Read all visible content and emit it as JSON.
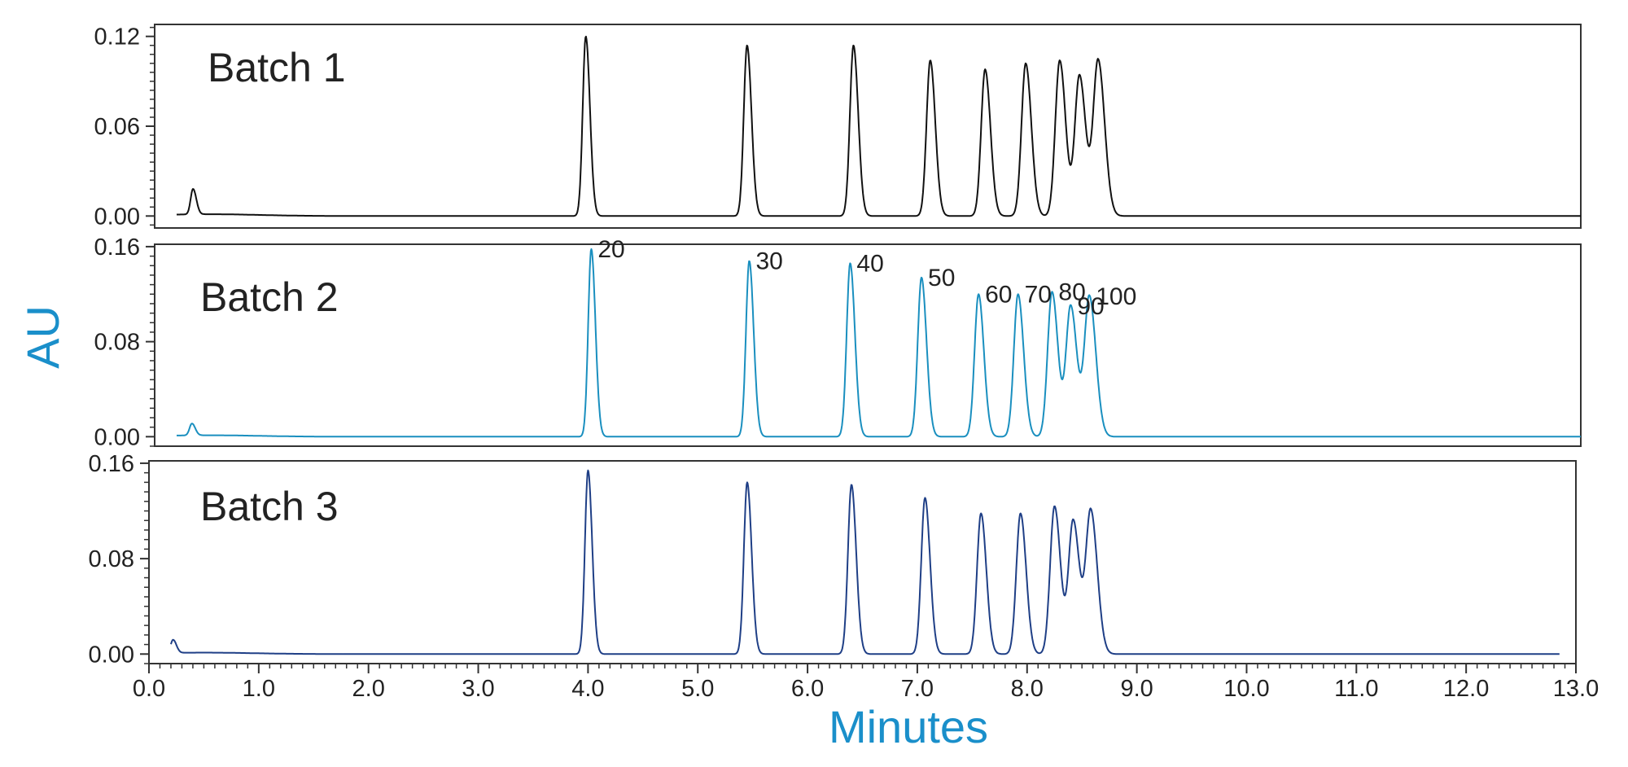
{
  "colors": {
    "batch1": "#111111",
    "batch2": "#1a8fbf",
    "batch3": "#1f3f86",
    "axis_title": "#1a8fca",
    "frame": "#333333"
  },
  "chart_data": {
    "type": "line",
    "title": "",
    "xlabel": "Minutes",
    "ylabel": "AU",
    "xlim": [
      0.0,
      13.0
    ],
    "x_ticks": [
      "0.0",
      "1.0",
      "2.0",
      "3.0",
      "4.0",
      "5.0",
      "6.0",
      "7.0",
      "8.0",
      "9.0",
      "10.0",
      "11.0",
      "12.0",
      "13.0"
    ],
    "grid": false,
    "panels": [
      {
        "name": "Batch 1",
        "ylim": [
          -0.008,
          0.128
        ],
        "y_ticks": [
          "0.00",
          "0.06",
          "0.12"
        ],
        "run_end": 13.0,
        "peaks": [
          {
            "x": 0.35,
            "y": 0.017
          },
          {
            "x": 3.93,
            "y": 0.12
          },
          {
            "x": 5.4,
            "y": 0.114
          },
          {
            "x": 6.37,
            "y": 0.114
          },
          {
            "x": 7.07,
            "y": 0.104
          },
          {
            "x": 7.57,
            "y": 0.098
          },
          {
            "x": 7.94,
            "y": 0.102
          },
          {
            "x": 8.25,
            "y": 0.104
          },
          {
            "x": 8.43,
            "y": 0.094
          },
          {
            "x": 8.6,
            "y": 0.104
          }
        ]
      },
      {
        "name": "Batch 2",
        "ylim": [
          -0.008,
          0.162
        ],
        "y_ticks": [
          "0.00",
          "0.08",
          "0.16"
        ],
        "run_end": 13.0,
        "peaks": [
          {
            "x": 0.34,
            "y": 0.01,
            "label": ""
          },
          {
            "x": 3.98,
            "y": 0.158,
            "label": "20"
          },
          {
            "x": 5.42,
            "y": 0.148,
            "label": "30"
          },
          {
            "x": 6.34,
            "y": 0.146,
            "label": "40"
          },
          {
            "x": 6.99,
            "y": 0.134,
            "label": "50"
          },
          {
            "x": 7.51,
            "y": 0.12,
            "label": "60"
          },
          {
            "x": 7.87,
            "y": 0.12,
            "label": "70"
          },
          {
            "x": 8.18,
            "y": 0.122,
            "label": "80"
          },
          {
            "x": 8.35,
            "y": 0.11,
            "label": "90"
          },
          {
            "x": 8.52,
            "y": 0.118,
            "label": "100"
          }
        ]
      },
      {
        "name": "Batch 3",
        "ylim": [
          -0.008,
          0.162
        ],
        "y_ticks": [
          "0.00",
          "0.08",
          "0.16"
        ],
        "run_end": 12.85,
        "peaks": [
          {
            "x": 0.22,
            "y": 0.011
          },
          {
            "x": 4.0,
            "y": 0.154
          },
          {
            "x": 5.45,
            "y": 0.144
          },
          {
            "x": 6.4,
            "y": 0.142
          },
          {
            "x": 7.07,
            "y": 0.131
          },
          {
            "x": 7.58,
            "y": 0.118
          },
          {
            "x": 7.94,
            "y": 0.118
          },
          {
            "x": 8.25,
            "y": 0.124
          },
          {
            "x": 8.42,
            "y": 0.112
          },
          {
            "x": 8.58,
            "y": 0.12
          }
        ]
      }
    ]
  }
}
